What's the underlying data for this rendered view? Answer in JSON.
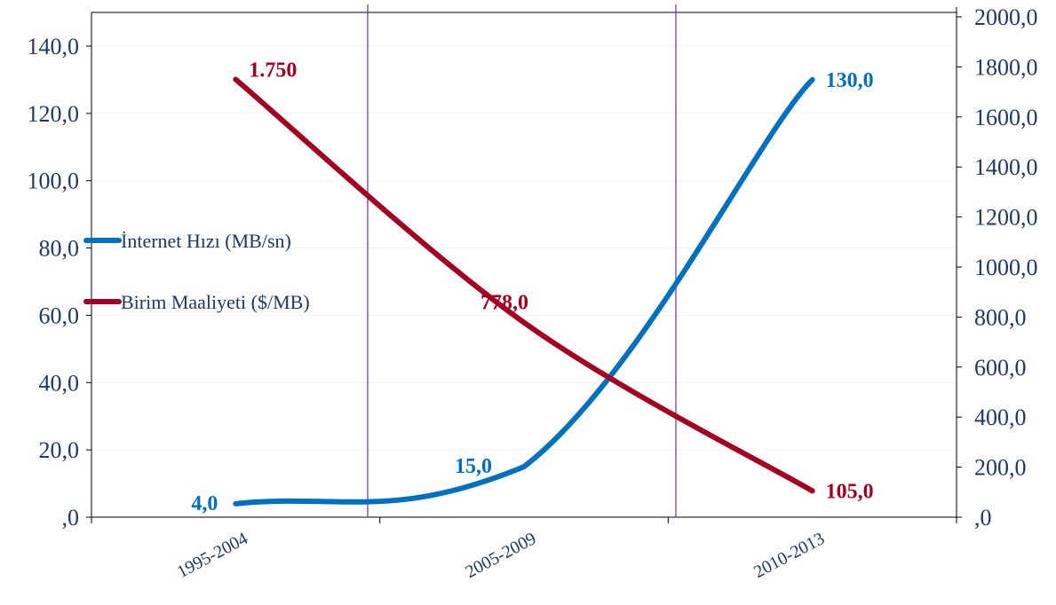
{
  "chart_data": {
    "type": "line",
    "categories": [
      "1995-2004",
      "2005-2009",
      "2010-2013"
    ],
    "y_left": {
      "ylim": [
        0,
        140
      ],
      "ticks": [
        ",0",
        "20,0",
        "40,0",
        "60,0",
        "80,0",
        "100,0",
        "120,0",
        "140,0"
      ]
    },
    "y_right": {
      "ylim": [
        0,
        2000
      ],
      "ticks": [
        ",0",
        "200,0",
        "400,0",
        "600,0",
        "800,0",
        "1000,0",
        "1200,0",
        "1400,0",
        "1600,0",
        "1800,0",
        "2000,0"
      ]
    },
    "series": [
      {
        "name": "İnternet Hızı (MB/sn)",
        "axis": "left",
        "color": "#0070c0",
        "values": [
          4.0,
          15.0,
          130.0
        ],
        "labels": [
          "4,0",
          "15,0",
          "130,0"
        ]
      },
      {
        "name": "Birim Maaliyeti ($/MB)",
        "axis": "right",
        "color": "#a50021",
        "values": [
          1750,
          778,
          105
        ],
        "labels": [
          "1.750",
          "778,0",
          "105,0"
        ]
      }
    ],
    "legend_position": "left",
    "grid": false,
    "smooth": true
  }
}
